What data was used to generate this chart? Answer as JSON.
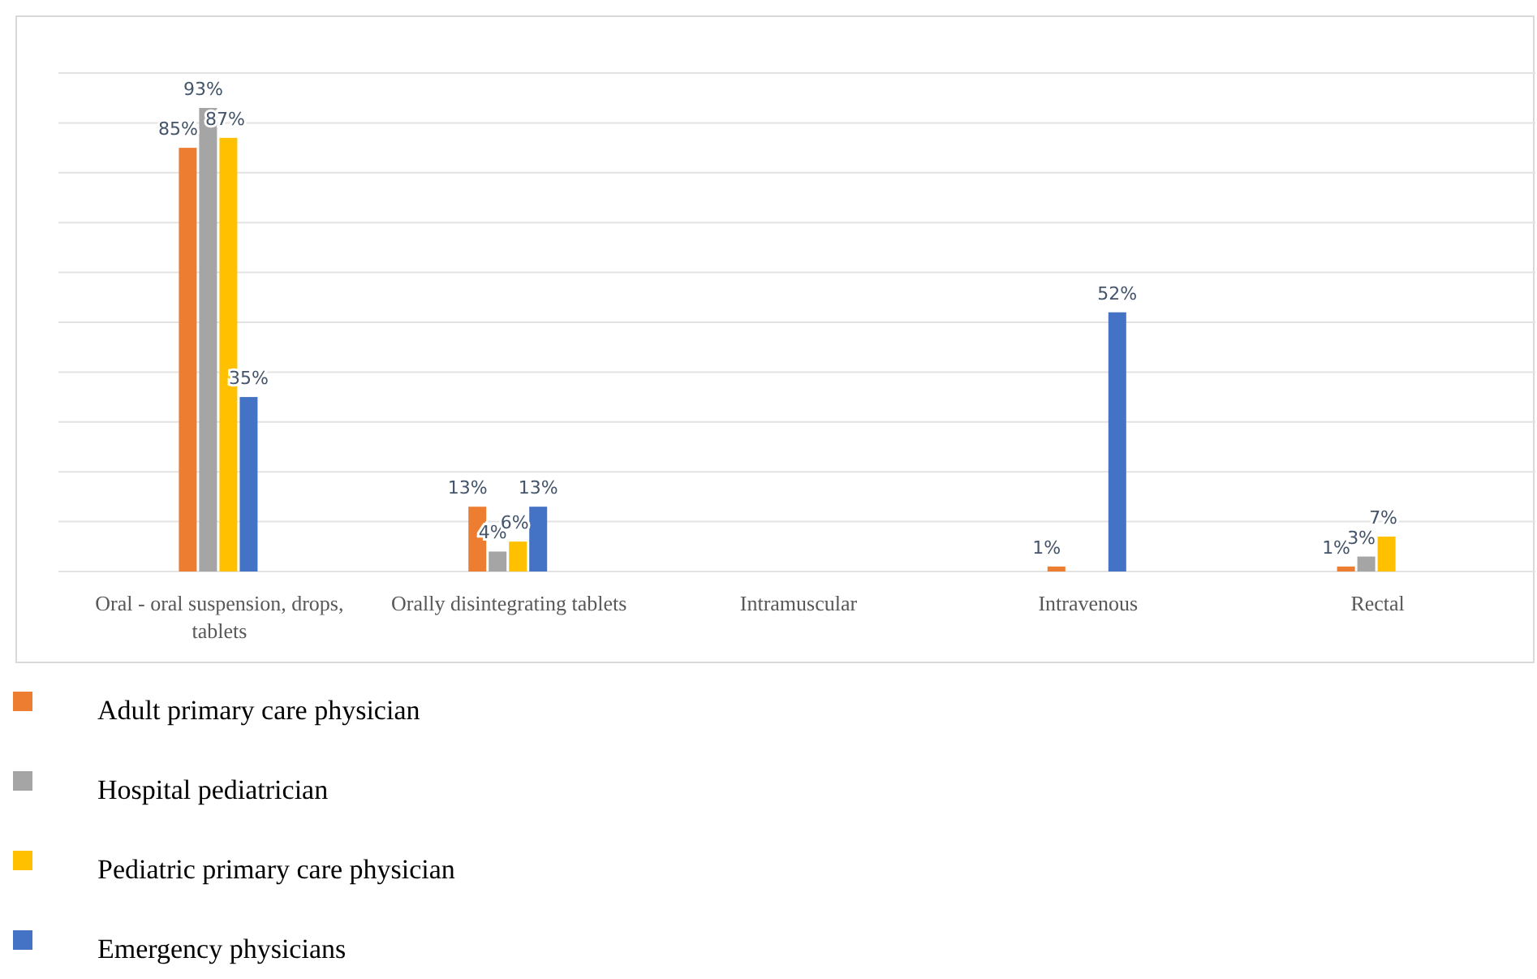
{
  "chart_data": {
    "type": "bar",
    "categories": [
      "Oral - oral suspension, drops, tablets",
      "Orally disintegrating tablets",
      "Intramuscular",
      "Intravenous",
      "Rectal"
    ],
    "series": [
      {
        "name": "Adult primary care physician",
        "color": "#ed7d31",
        "values": [
          85,
          13,
          null,
          1,
          1
        ],
        "value_labels": [
          "85%",
          "13%",
          null,
          "1%",
          "1%"
        ]
      },
      {
        "name": "Hospital pediatrician",
        "color": "#a5a5a5",
        "values": [
          93,
          4,
          null,
          null,
          3
        ],
        "value_labels": [
          "93%",
          "4%",
          null,
          null,
          "3%"
        ]
      },
      {
        "name": "Pediatric primary care physician",
        "color": "#ffc000",
        "values": [
          87,
          6,
          null,
          null,
          7
        ],
        "value_labels": [
          "87%",
          "6%",
          null,
          null,
          "7%"
        ]
      },
      {
        "name": "Emergency physicians",
        "color": "#4472c4",
        "values": [
          35,
          13,
          null,
          52,
          null
        ],
        "value_labels": [
          "35%",
          "13%",
          null,
          "52%",
          null
        ]
      }
    ],
    "ylim": [
      0,
      100
    ],
    "yticks": [
      {
        "value": 0,
        "label": null
      },
      {
        "value": 10,
        "label": null
      },
      {
        "value": 20,
        "label": null
      },
      {
        "value": 30,
        "label": null
      },
      {
        "value": 40,
        "label": null
      },
      {
        "value": 50,
        "label": null
      },
      {
        "value": 60,
        "label": null
      },
      {
        "value": 70,
        "label": null
      },
      {
        "value": 80,
        "label": null
      },
      {
        "value": 90,
        "label": null
      },
      {
        "value": 100,
        "label": null
      }
    ],
    "grid": "y",
    "tick_labels": "x",
    "legend": "bottom"
  }
}
